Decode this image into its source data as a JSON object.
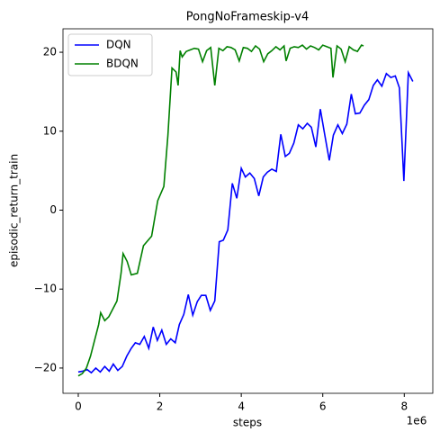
{
  "chart_data": {
    "type": "line",
    "title": "PongNoFrameskip-v4",
    "x_label": "steps",
    "y_label": "episodic_return_train",
    "x_offset_text": "1e6",
    "xlim": [
      -0.375,
      8.7
    ],
    "xticks": [
      0,
      2,
      4,
      6,
      8
    ],
    "ylim": [
      -23.2,
      22.97
    ],
    "yticks": [
      {
        "value": -20,
        "label": "−20"
      },
      {
        "value": -10,
        "label": "−10"
      },
      0,
      10,
      20
    ],
    "grid": false,
    "legend_position": "upper-left",
    "series": [
      {
        "name": "DQN",
        "color": "#0000ff",
        "x": [
          0,
          0.11,
          0.22,
          0.32,
          0.43,
          0.54,
          0.65,
          0.76,
          0.86,
          0.97,
          1.08,
          1.19,
          1.3,
          1.4,
          1.51,
          1.62,
          1.73,
          1.84,
          1.94,
          2.05,
          2.16,
          2.27,
          2.38,
          2.48,
          2.59,
          2.7,
          2.81,
          2.92,
          3.02,
          3.13,
          3.24,
          3.35,
          3.46,
          3.56,
          3.67,
          3.78,
          3.89,
          4.0,
          4.1,
          4.21,
          4.32,
          4.43,
          4.54,
          4.64,
          4.75,
          4.86,
          4.97,
          5.08,
          5.18,
          5.29,
          5.4,
          5.51,
          5.62,
          5.72,
          5.83,
          5.94,
          6.05,
          6.16,
          6.26,
          6.37,
          6.48,
          6.59,
          6.7,
          6.8,
          6.91,
          7.02,
          7.13,
          7.24,
          7.34,
          7.45,
          7.56,
          7.67,
          7.78,
          7.88,
          7.99,
          8.1,
          8.21
        ],
        "values": [
          -20.5,
          -20.4,
          -20.2,
          -20.6,
          -20,
          -20.5,
          -19.8,
          -20.4,
          -19.5,
          -20.3,
          -19.8,
          -18.5,
          -17.5,
          -16.8,
          -17,
          -16,
          -17.5,
          -14.8,
          -16.5,
          -15.2,
          -17,
          -16.3,
          -16.8,
          -14.5,
          -13.2,
          -10.7,
          -13.3,
          -11.6,
          -10.8,
          -10.8,
          -12.7,
          -11.5,
          -4,
          -3.8,
          -2.5,
          3.4,
          1.5,
          5.3,
          4.2,
          4.7,
          4,
          1.8,
          4.2,
          4.8,
          5.2,
          4.9,
          9.6,
          6.8,
          7.2,
          8.5,
          10.8,
          10.3,
          11,
          10.5,
          8,
          12.8,
          9.5,
          6.3,
          9.5,
          10.8,
          9.7,
          10.9,
          14.7,
          12.2,
          12.3,
          13.3,
          14,
          15.8,
          16.5,
          15.7,
          17.3,
          16.8,
          17,
          15.5,
          3.7,
          17.4,
          16.3
        ]
      },
      {
        "name": "BDQN",
        "color": "#008000",
        "x": [
          0,
          0.1,
          0.2,
          0.3,
          0.4,
          0.5,
          0.55,
          0.65,
          0.75,
          0.85,
          0.95,
          1.05,
          1.1,
          1.2,
          1.3,
          1.45,
          1.6,
          1.8,
          1.95,
          2.1,
          2.2,
          2.3,
          2.4,
          2.45,
          2.5,
          2.55,
          2.65,
          2.75,
          2.85,
          2.95,
          3.05,
          3.15,
          3.25,
          3.35,
          3.45,
          3.55,
          3.65,
          3.75,
          3.85,
          3.95,
          4.05,
          4.15,
          4.25,
          4.35,
          4.45,
          4.55,
          4.65,
          4.75,
          4.85,
          4.95,
          5.05,
          5.1,
          5.2,
          5.3,
          5.4,
          5.5,
          5.6,
          5.7,
          5.8,
          5.9,
          6.0,
          6.1,
          6.2,
          6.25,
          6.35,
          6.45,
          6.55,
          6.65,
          6.75,
          6.85,
          6.95,
          7.0
        ],
        "values": [
          -21,
          -20.7,
          -20,
          -18.5,
          -16.5,
          -14.5,
          -13,
          -14,
          -13.5,
          -12.5,
          -11.5,
          -8,
          -5.5,
          -6.5,
          -8.2,
          -8,
          -4.5,
          -3.3,
          1.2,
          3,
          9.5,
          18,
          17.5,
          15.8,
          20.2,
          19.4,
          20.1,
          20.3,
          20.5,
          20.4,
          18.8,
          20.2,
          20.6,
          15.8,
          20.5,
          20.2,
          20.7,
          20.6,
          20.3,
          18.9,
          20.6,
          20.5,
          20.1,
          20.8,
          20.4,
          18.8,
          19.8,
          20.2,
          20.7,
          20.3,
          20.8,
          18.9,
          20.5,
          20.7,
          20.6,
          20.9,
          20.4,
          20.8,
          20.6,
          20.3,
          20.9,
          20.7,
          20.5,
          16.8,
          20.8,
          20.4,
          18.8,
          20.7,
          20.3,
          20.1,
          20.9,
          20.8
        ]
      }
    ]
  }
}
